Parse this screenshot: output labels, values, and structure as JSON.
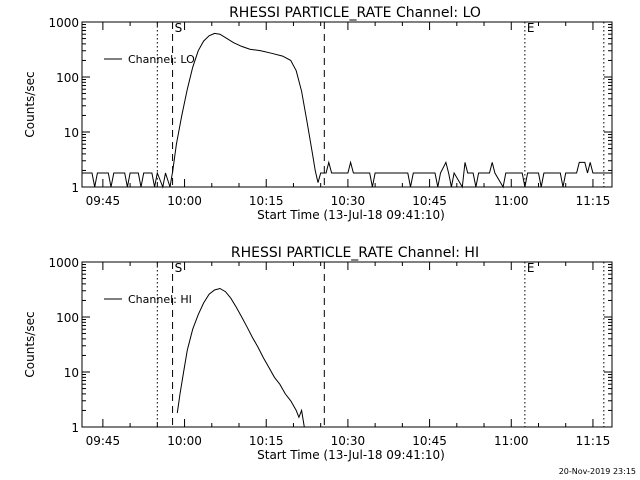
{
  "footer": {
    "date_stamp": "20-Nov-2019 23:15"
  },
  "chart_data": [
    {
      "type": "line",
      "title": "RHESSI PARTICLE_RATE Channel: LO",
      "xlabel": "Start Time (13-Jul-18 09:41:10)",
      "ylabel": "Counts/sec",
      "y_scale": "log",
      "ylim": [
        1,
        1000
      ],
      "xlim": [
        "09:41:10",
        "11:18:30"
      ],
      "x_ticks": [
        "09:45",
        "10:00",
        "10:15",
        "10:30",
        "10:45",
        "11:00",
        "11:15"
      ],
      "y_ticks": [
        "1",
        "10",
        "100",
        "1000"
      ],
      "legend": {
        "position": "top-left",
        "entries": [
          "Channel: LO"
        ]
      },
      "markers": [
        {
          "label": "S",
          "time": "09:57:48",
          "style": "dashed"
        },
        {
          "label": "",
          "time": "10:25:40",
          "style": "dashed"
        },
        {
          "label": "E",
          "time": "11:02:30",
          "style": "dotted"
        },
        {
          "label": "",
          "time": "09:55:00",
          "style": "dotted"
        },
        {
          "label": "",
          "time": "11:17:00",
          "style": "dotted"
        }
      ],
      "series": [
        {
          "name": "Channel: LO",
          "points": [
            [
              "09:41:10",
              1.8
            ],
            [
              "09:43:00",
              1.8
            ],
            [
              "09:43:30",
              1.0
            ],
            [
              "09:44:00",
              1.8
            ],
            [
              "09:46:00",
              1.8
            ],
            [
              "09:46:30",
              1.0
            ],
            [
              "09:47:00",
              1.8
            ],
            [
              "09:49:00",
              1.8
            ],
            [
              "09:49:30",
              1.0
            ],
            [
              "09:50:00",
              1.8
            ],
            [
              "09:51:30",
              1.8
            ],
            [
              "09:52:00",
              1.0
            ],
            [
              "09:52:30",
              1.8
            ],
            [
              "09:54:00",
              1.8
            ],
            [
              "09:54:30",
              1.0
            ],
            [
              "09:55:00",
              1.8
            ],
            [
              "09:56:00",
              1.0
            ],
            [
              "09:56:30",
              1.8
            ],
            [
              "09:57:20",
              1.0
            ],
            [
              "09:57:50",
              2.0
            ],
            [
              "09:58:30",
              6.0
            ],
            [
              "09:59:30",
              20
            ],
            [
              "10:00:30",
              60
            ],
            [
              "10:01:30",
              150
            ],
            [
              "10:02:30",
              300
            ],
            [
              "10:03:30",
              450
            ],
            [
              "10:04:30",
              560
            ],
            [
              "10:05:30",
              620
            ],
            [
              "10:06:30",
              600
            ],
            [
              "10:07:30",
              520
            ],
            [
              "10:09:00",
              420
            ],
            [
              "10:10:30",
              360
            ],
            [
              "10:12:00",
              320
            ],
            [
              "10:14:00",
              300
            ],
            [
              "10:16:00",
              270
            ],
            [
              "10:18:00",
              240
            ],
            [
              "10:19:30",
              200
            ],
            [
              "10:20:30",
              130
            ],
            [
              "10:21:30",
              55
            ],
            [
              "10:22:30",
              15
            ],
            [
              "10:23:30",
              4.0
            ],
            [
              "10:24:00",
              2.0
            ],
            [
              "10:24:30",
              1.2
            ],
            [
              "10:25:00",
              1.8
            ],
            [
              "10:26:00",
              1.8
            ],
            [
              "10:26:30",
              2.8
            ],
            [
              "10:27:00",
              1.8
            ],
            [
              "10:30:00",
              1.8
            ],
            [
              "10:30:30",
              2.8
            ],
            [
              "10:31:00",
              1.8
            ],
            [
              "10:34:00",
              1.8
            ],
            [
              "10:34:30",
              1.0
            ],
            [
              "10:35:00",
              1.8
            ],
            [
              "10:40:00",
              1.8
            ],
            [
              "10:41:00",
              1.8
            ],
            [
              "10:41:30",
              1.0
            ],
            [
              "10:42:00",
              1.8
            ],
            [
              "10:45:00",
              1.8
            ],
            [
              "10:46:00",
              1.8
            ],
            [
              "10:46:30",
              1.0
            ],
            [
              "10:47:00",
              1.8
            ],
            [
              "10:48:00",
              2.8
            ],
            [
              "10:48:30",
              1.8
            ],
            [
              "10:49:00",
              1.0
            ],
            [
              "10:49:30",
              1.8
            ],
            [
              "10:51:00",
              1.0
            ],
            [
              "10:51:30",
              2.8
            ],
            [
              "10:52:00",
              1.8
            ],
            [
              "10:53:00",
              1.8
            ],
            [
              "10:53:30",
              1.0
            ],
            [
              "10:54:00",
              1.8
            ],
            [
              "10:56:00",
              1.8
            ],
            [
              "10:56:30",
              2.8
            ],
            [
              "10:57:00",
              1.8
            ],
            [
              "10:58:30",
              1.0
            ],
            [
              "10:59:00",
              1.8
            ],
            [
              "11:02:00",
              1.8
            ],
            [
              "11:02:30",
              1.0
            ],
            [
              "11:03:00",
              1.8
            ],
            [
              "11:05:00",
              1.8
            ],
            [
              "11:05:30",
              1.0
            ],
            [
              "11:06:00",
              1.8
            ],
            [
              "11:09:00",
              1.8
            ],
            [
              "11:09:30",
              1.0
            ],
            [
              "11:10:00",
              1.8
            ],
            [
              "11:12:00",
              1.8
            ],
            [
              "11:12:30",
              2.8
            ],
            [
              "11:13:30",
              2.8
            ],
            [
              "11:14:00",
              1.8
            ],
            [
              "11:14:30",
              2.8
            ],
            [
              "11:15:00",
              1.8
            ],
            [
              "11:18:30",
              1.8
            ]
          ]
        }
      ]
    },
    {
      "type": "line",
      "title": "RHESSI PARTICLE_RATE Channel: HI",
      "xlabel": "Start Time (13-Jul-18 09:41:10)",
      "ylabel": "Counts/sec",
      "y_scale": "log",
      "ylim": [
        1,
        1000
      ],
      "xlim": [
        "09:41:10",
        "11:18:30"
      ],
      "x_ticks": [
        "09:45",
        "10:00",
        "10:15",
        "10:30",
        "10:45",
        "11:00",
        "11:15"
      ],
      "y_ticks": [
        "1",
        "10",
        "100",
        "1000"
      ],
      "legend": {
        "position": "top-left",
        "entries": [
          "Channel: HI"
        ]
      },
      "markers": [
        {
          "label": "S",
          "time": "09:57:48",
          "style": "dashed"
        },
        {
          "label": "",
          "time": "10:25:40",
          "style": "dashed"
        },
        {
          "label": "E",
          "time": "11:02:30",
          "style": "dotted"
        },
        {
          "label": "",
          "time": "09:55:00",
          "style": "dotted"
        },
        {
          "label": "",
          "time": "11:17:00",
          "style": "dotted"
        }
      ],
      "series": [
        {
          "name": "Channel: HI",
          "points": [
            [
              "09:58:40",
              1.8
            ],
            [
              "09:59:10",
              4.0
            ],
            [
              "09:59:50",
              10
            ],
            [
              "10:00:30",
              25
            ],
            [
              "10:01:30",
              60
            ],
            [
              "10:02:30",
              110
            ],
            [
              "10:03:30",
              180
            ],
            [
              "10:04:30",
              260
            ],
            [
              "10:05:30",
              310
            ],
            [
              "10:06:30",
              330
            ],
            [
              "10:07:30",
              290
            ],
            [
              "10:08:30",
              220
            ],
            [
              "10:09:30",
              150
            ],
            [
              "10:10:30",
              100
            ],
            [
              "10:11:30",
              65
            ],
            [
              "10:12:30",
              42
            ],
            [
              "10:13:30",
              28
            ],
            [
              "10:14:30",
              18
            ],
            [
              "10:15:30",
              12
            ],
            [
              "10:16:30",
              8.0
            ],
            [
              "10:17:30",
              6.0
            ],
            [
              "10:18:30",
              4.0
            ],
            [
              "10:19:30",
              3.0
            ],
            [
              "10:20:30",
              2.0
            ],
            [
              "10:21:00",
              1.5
            ],
            [
              "10:21:30",
              2.0
            ],
            [
              "10:22:00",
              1.0
            ]
          ]
        }
      ]
    }
  ]
}
